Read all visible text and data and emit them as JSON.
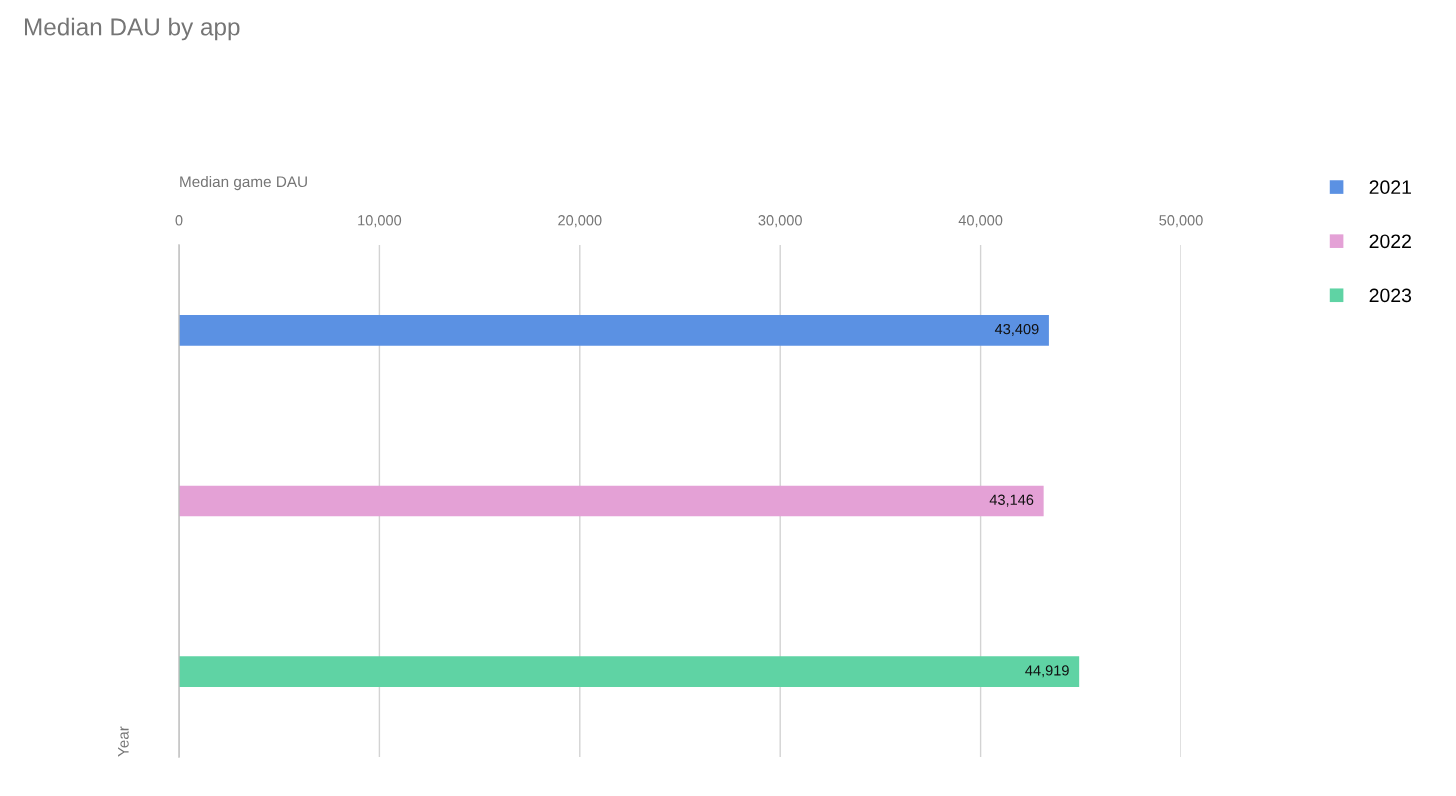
{
  "chart_data": {
    "type": "bar",
    "orientation": "horizontal",
    "title": "Median DAU by app",
    "xlabel": "Median game DAU",
    "ylabel": "Year",
    "categories": [
      null
    ],
    "series": [
      {
        "name": "2021",
        "color": "#5b91e3",
        "values": [
          43409
        ],
        "value_labels": [
          "43,409"
        ]
      },
      {
        "name": "2022",
        "color": "#e4a1d6",
        "values": [
          43146
        ],
        "value_labels": [
          "43,146"
        ]
      },
      {
        "name": "2023",
        "color": "#5fd3a4",
        "values": [
          44919
        ],
        "value_labels": [
          "44,919"
        ]
      }
    ],
    "xlim": [
      0,
      50000
    ],
    "xticks": [
      0,
      {
        "value": 10000,
        "label": "10,000"
      },
      {
        "value": 20000,
        "label": "20,000"
      },
      {
        "value": 30000,
        "label": "30,000"
      },
      {
        "value": 40000,
        "label": "40,000"
      },
      {
        "value": 50000,
        "label": "50,000"
      }
    ],
    "grid": "x",
    "legend": "top right",
    "tick_labels": "x"
  }
}
